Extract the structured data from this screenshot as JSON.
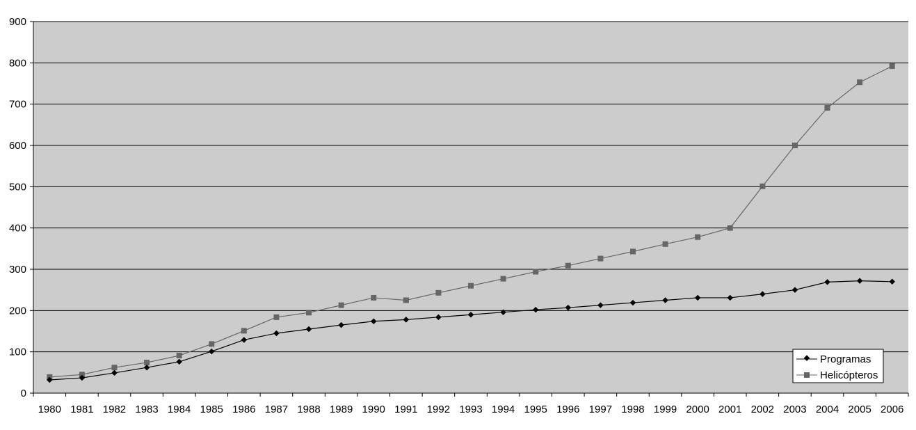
{
  "chart_data": {
    "type": "line",
    "x": [
      "1980",
      "1981",
      "1982",
      "1983",
      "1984",
      "1985",
      "1986",
      "1987",
      "1988",
      "1989",
      "1990",
      "1991",
      "1992",
      "1993",
      "1994",
      "1995",
      "1996",
      "1997",
      "1998",
      "1999",
      "2000",
      "2001",
      "2002",
      "2003",
      "2004",
      "2005",
      "2006"
    ],
    "series": [
      {
        "name": "Programas",
        "marker": "diamond",
        "color": "#000000",
        "values": [
          32,
          37,
          49,
          62,
          76,
          101,
          129,
          145,
          155,
          165,
          174,
          178,
          184,
          190,
          196,
          202,
          207,
          213,
          219,
          225,
          231,
          231,
          240,
          250,
          269,
          272,
          270
        ]
      },
      {
        "name": "Helicópteros",
        "marker": "square",
        "color": "#666666",
        "values": [
          39,
          45,
          62,
          74,
          91,
          119,
          151,
          184,
          195,
          213,
          231,
          225,
          243,
          260,
          277,
          294,
          309,
          326,
          343,
          361,
          378,
          400,
          501,
          600,
          691,
          753,
          792
        ]
      }
    ],
    "title": "",
    "xlabel": "",
    "ylabel": "",
    "ylim": [
      0,
      900
    ],
    "yticks": [
      "0",
      "100",
      "200",
      "300",
      "400",
      "500",
      "600",
      "700",
      "800",
      "900"
    ],
    "grid": true,
    "plot_background": "#cccccc",
    "legend_position": "bottom-right"
  }
}
